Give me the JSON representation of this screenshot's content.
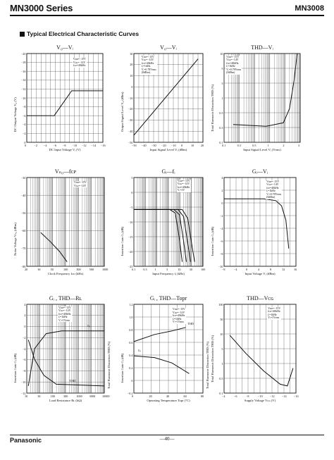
{
  "header": {
    "series": "MN3000 Series",
    "model": "MN3008"
  },
  "section_title": "Typical Electrical Characteristic Curves",
  "footer": {
    "brand": "Panasonic",
    "page": "—40—"
  },
  "panels": [
    {
      "title": "V₀—Vᵢ",
      "ylabel": "DC Output Voltage  V₀ (V)",
      "xlabel": "DC Input Voltage  Vᵢ (V)",
      "yticks": [
        "−20",
        "−18",
        "−16",
        "−14",
        "−12",
        "−10",
        "−8",
        "−6",
        "−4",
        "−2",
        "0"
      ],
      "xticks": [
        "0",
        "−2",
        "−4",
        "−6",
        "−8",
        "−10",
        "−12",
        "−14",
        "−16"
      ],
      "conditions": "Vᴅᴅ=−15V\nVɢɢ=−14V\nfᴄᴘ=40kHz"
    },
    {
      "title": "V₀—Vᵢ",
      "ylabel": "Output Signal Level  V₀ (dBm)",
      "xlabel": "Input Signal Level  Vᵢ (dBm)",
      "yticks": [
        "30",
        "20",
        "10",
        "0",
        "−10",
        "−20",
        "−30",
        "−40",
        "−50"
      ],
      "xticks": [
        "−50",
        "−40",
        "−30",
        "−20",
        "−10",
        "0",
        "10",
        "20"
      ],
      "conditions": "Vᴅᴅ=−15V\nVɢɢ=−14V\nfᴄᴘ=40kHz\nfᵢ=1kHz\nVᵢ=0.78Vrms\n(0dBm)"
    },
    {
      "title": "THD—Vᵢ",
      "ylabel": "Total Harmonic Distortion  THD (%)",
      "xlabel": "Input Signal Level  Vᵢ (Vrms)",
      "yticks": [
        "10",
        "5",
        "3",
        "1",
        "0.5",
        "0.3",
        "0.1"
      ],
      "xticks": [
        "0.1",
        "0.3",
        "0.5",
        "1",
        "2",
        "3"
      ],
      "conditions": "Vᴅᴅ=−15V\nVɢɢ=−14V\nfᴄᴘ=40kHz\nfᵢ=1kHz\nVᵢ=0.78Vrms\n(0dBm)"
    },
    {
      "title": "Vₙ₀—fᴄᴘ",
      "ylabel": "Noise Voltage  Vₙ₀ (dBm)",
      "xlabel": "Clock Frequency  fᴄᴘ (kHz)",
      "yticks": [
        "−30",
        "−40",
        "−50",
        "−60",
        "−70",
        "−80"
      ],
      "xticks": [
        "20",
        "30",
        "50",
        "100",
        "300",
        "500",
        "1000"
      ],
      "conditions": "Vᴅᴅ=−15V\nVɢɢ=−14V"
    },
    {
      "title": "Gᵢ—fᵢ",
      "ylabel": "Insertion Gain  Gᵢ (dB)",
      "xlabel": "Input Frequency  fᵢ (kHz)",
      "yticks": [
        "5",
        "0",
        "−5",
        "−10",
        "−15",
        "−20",
        "−25"
      ],
      "xticks": [
        "0.1",
        "0.3",
        "1",
        "3",
        "10",
        "30",
        "100"
      ],
      "conditions": "Vᴅᴅ=−15V\nVɢɢ=−14V\nfᴄᴘ=40kHz\nVᵢ=1V"
    },
    {
      "title": "Gᵢ—Vᵢ",
      "ylabel": "Insertion Gain  Gᵢ (dB)",
      "xlabel": "Input Voltage  Vᵢ (dBm)",
      "yticks": [
        "4",
        "2",
        "0",
        "−2",
        "−4",
        "−6",
        "−8",
        "−10"
      ],
      "xticks": [
        "−8",
        "−4",
        "0",
        "4",
        "8",
        "12",
        "16"
      ],
      "conditions": "Vᴅᴅ=−15V\nVɢɢ=−14V\nfᴄᴘ=40kHz\nfᵢ=1kHz\nVᵢ=0.78Vrms\n(0dBm)"
    },
    {
      "title": "Gᵢ , THD—Rʟ",
      "ylabel": "Insertion Gain  Gᵢ (dB)",
      "ylabel2": "Total Harmonic Distortion  THD (%)",
      "xlabel": "Load Resistance  Rʟ (kΩ)",
      "yticks": [
        "4",
        "2",
        "0",
        "−2",
        "−4",
        "−6",
        "−8",
        "−10",
        "−12"
      ],
      "xticks": [
        "10",
        "30",
        "100",
        "300",
        "1000",
        "3000",
        "10000"
      ],
      "conditions": "Vᴅᴅ=−15V\nVɢɢ=−14V\nfᴄᴘ=40kHz\nfᵢ=1kHz\nVᵢ=1Vrms",
      "curve_labels": [
        "Gᵢ",
        "THD"
      ]
    },
    {
      "title": "Gᵢ , THD—Topr",
      "ylabel": "Insertion Gain  Gᵢ (dB)",
      "ylabel2": "Total Harmonic Distortion  THD (%)",
      "xlabel": "Operating Temperature  Topr (°C)",
      "yticks": [
        "1.2",
        "1.0",
        "0.8",
        "0.6",
        "0.4",
        "0.2",
        "0",
        "−0.2"
      ],
      "xticks": [
        "0",
        "20",
        "40",
        "60",
        "80"
      ],
      "conditions": "Vᴅᴅ=−15V\nVɢɢ=−14V\nfᴄᴘ=40kHz\nfᵢ=1kHz\nVᵢ=1Vrms",
      "curve_labels": [
        "THD",
        "Gᵢ"
      ]
    },
    {
      "title": "THD—Vᴄɢ",
      "ylabel": "Total Harmonic Distortion  THD (%)",
      "xlabel": "Supply Voltage  Vᴄɢ (V)",
      "yticks": [
        "100",
        "50",
        "10",
        "5",
        "1",
        "0.5",
        "0.1"
      ],
      "xticks": [
        "−4",
        "−6",
        "−8",
        "−10",
        "−12",
        "−14",
        "−16"
      ],
      "conditions": "Vᴅᴅ=−15V\nfᴄᴘ=40kHz\nfᵢ=1kHz\nVᵢ=1Vrms"
    }
  ]
}
